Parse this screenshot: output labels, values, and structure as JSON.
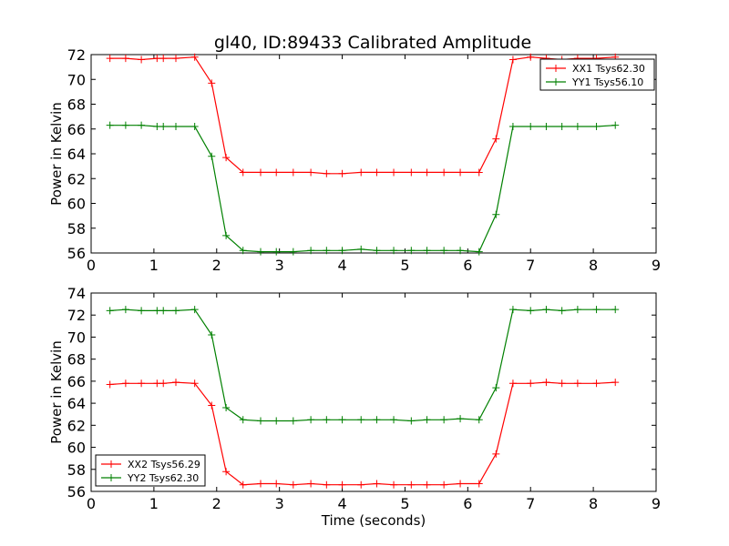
{
  "figure": {
    "title": "gl40, ID:89433 Calibrated Amplitude",
    "xlabel": "Time (seconds)"
  },
  "colors": {
    "series_a": "#ff0000",
    "series_b": "#008000",
    "frame": "#000000",
    "background": "#ffffff"
  },
  "chart_data": [
    {
      "type": "line",
      "title": "gl40, ID:89433 Calibrated Amplitude",
      "xlabel": "",
      "ylabel": "Power in Kelvin",
      "xlim": [
        0,
        9
      ],
      "ylim": [
        56,
        72
      ],
      "xticks": [
        "0",
        "1",
        "2",
        "3",
        "4",
        "5",
        "6",
        "7",
        "8",
        "9"
      ],
      "yticks": [
        "56",
        "58",
        "60",
        "62",
        "64",
        "66",
        "68",
        "70",
        "72"
      ],
      "legend_position": "top-right",
      "marker": "+",
      "x": [
        0.3,
        0.55,
        0.8,
        1.05,
        1.15,
        1.35,
        1.65,
        1.92,
        2.15,
        2.42,
        2.7,
        2.95,
        3.22,
        3.5,
        3.75,
        4.0,
        4.3,
        4.55,
        4.82,
        5.1,
        5.35,
        5.62,
        5.88,
        6.18,
        6.45,
        6.72,
        7.0,
        7.25,
        7.5,
        7.75,
        8.05,
        8.35
      ],
      "series": [
        {
          "name": "XX1 Tsys62.30",
          "color": "#ff0000",
          "values": [
            71.7,
            71.7,
            71.6,
            71.7,
            71.7,
            71.7,
            71.8,
            69.7,
            63.7,
            62.5,
            62.5,
            62.5,
            62.5,
            62.5,
            62.4,
            62.4,
            62.5,
            62.5,
            62.5,
            62.5,
            62.5,
            62.5,
            62.5,
            62.5,
            65.2,
            71.6,
            71.8,
            71.7,
            71.6,
            71.7,
            71.7,
            71.8
          ]
        },
        {
          "name": "YY1 Tsys56.10",
          "color": "#008000",
          "values": [
            66.3,
            66.3,
            66.3,
            66.2,
            66.2,
            66.2,
            66.2,
            63.8,
            57.4,
            56.2,
            56.1,
            56.1,
            56.1,
            56.2,
            56.2,
            56.2,
            56.3,
            56.2,
            56.2,
            56.2,
            56.2,
            56.2,
            56.2,
            56.1,
            59.1,
            66.2,
            66.2,
            66.2,
            66.2,
            66.2,
            66.2,
            66.3
          ]
        }
      ]
    },
    {
      "type": "line",
      "title": "",
      "xlabel": "Time (seconds)",
      "ylabel": "Power in Kelvin",
      "xlim": [
        0,
        9
      ],
      "ylim": [
        56,
        74
      ],
      "xticks": [
        "0",
        "1",
        "2",
        "3",
        "4",
        "5",
        "6",
        "7",
        "8",
        "9"
      ],
      "yticks": [
        "56",
        "58",
        "60",
        "62",
        "64",
        "66",
        "68",
        "70",
        "72",
        "74"
      ],
      "legend_position": "bottom-left",
      "marker": "+",
      "x": [
        0.3,
        0.55,
        0.8,
        1.05,
        1.15,
        1.35,
        1.65,
        1.92,
        2.15,
        2.42,
        2.7,
        2.95,
        3.22,
        3.5,
        3.75,
        4.0,
        4.3,
        4.55,
        4.82,
        5.1,
        5.35,
        5.62,
        5.88,
        6.18,
        6.45,
        6.72,
        7.0,
        7.25,
        7.5,
        7.75,
        8.05,
        8.35
      ],
      "series": [
        {
          "name": "XX2 Tsys56.29",
          "color": "#ff0000",
          "values": [
            65.7,
            65.8,
            65.8,
            65.8,
            65.8,
            65.9,
            65.8,
            63.8,
            57.8,
            56.6,
            56.7,
            56.7,
            56.6,
            56.7,
            56.6,
            56.6,
            56.6,
            56.7,
            56.6,
            56.6,
            56.6,
            56.6,
            56.7,
            56.7,
            59.4,
            65.8,
            65.8,
            65.9,
            65.8,
            65.8,
            65.8,
            65.9
          ]
        },
        {
          "name": "YY2 Tsys62.30",
          "color": "#008000",
          "values": [
            72.4,
            72.5,
            72.4,
            72.4,
            72.4,
            72.4,
            72.5,
            70.2,
            63.6,
            62.5,
            62.4,
            62.4,
            62.4,
            62.5,
            62.5,
            62.5,
            62.5,
            62.5,
            62.5,
            62.4,
            62.5,
            62.5,
            62.6,
            62.5,
            65.4,
            72.5,
            72.4,
            72.5,
            72.4,
            72.5,
            72.5,
            72.5
          ]
        }
      ]
    }
  ]
}
